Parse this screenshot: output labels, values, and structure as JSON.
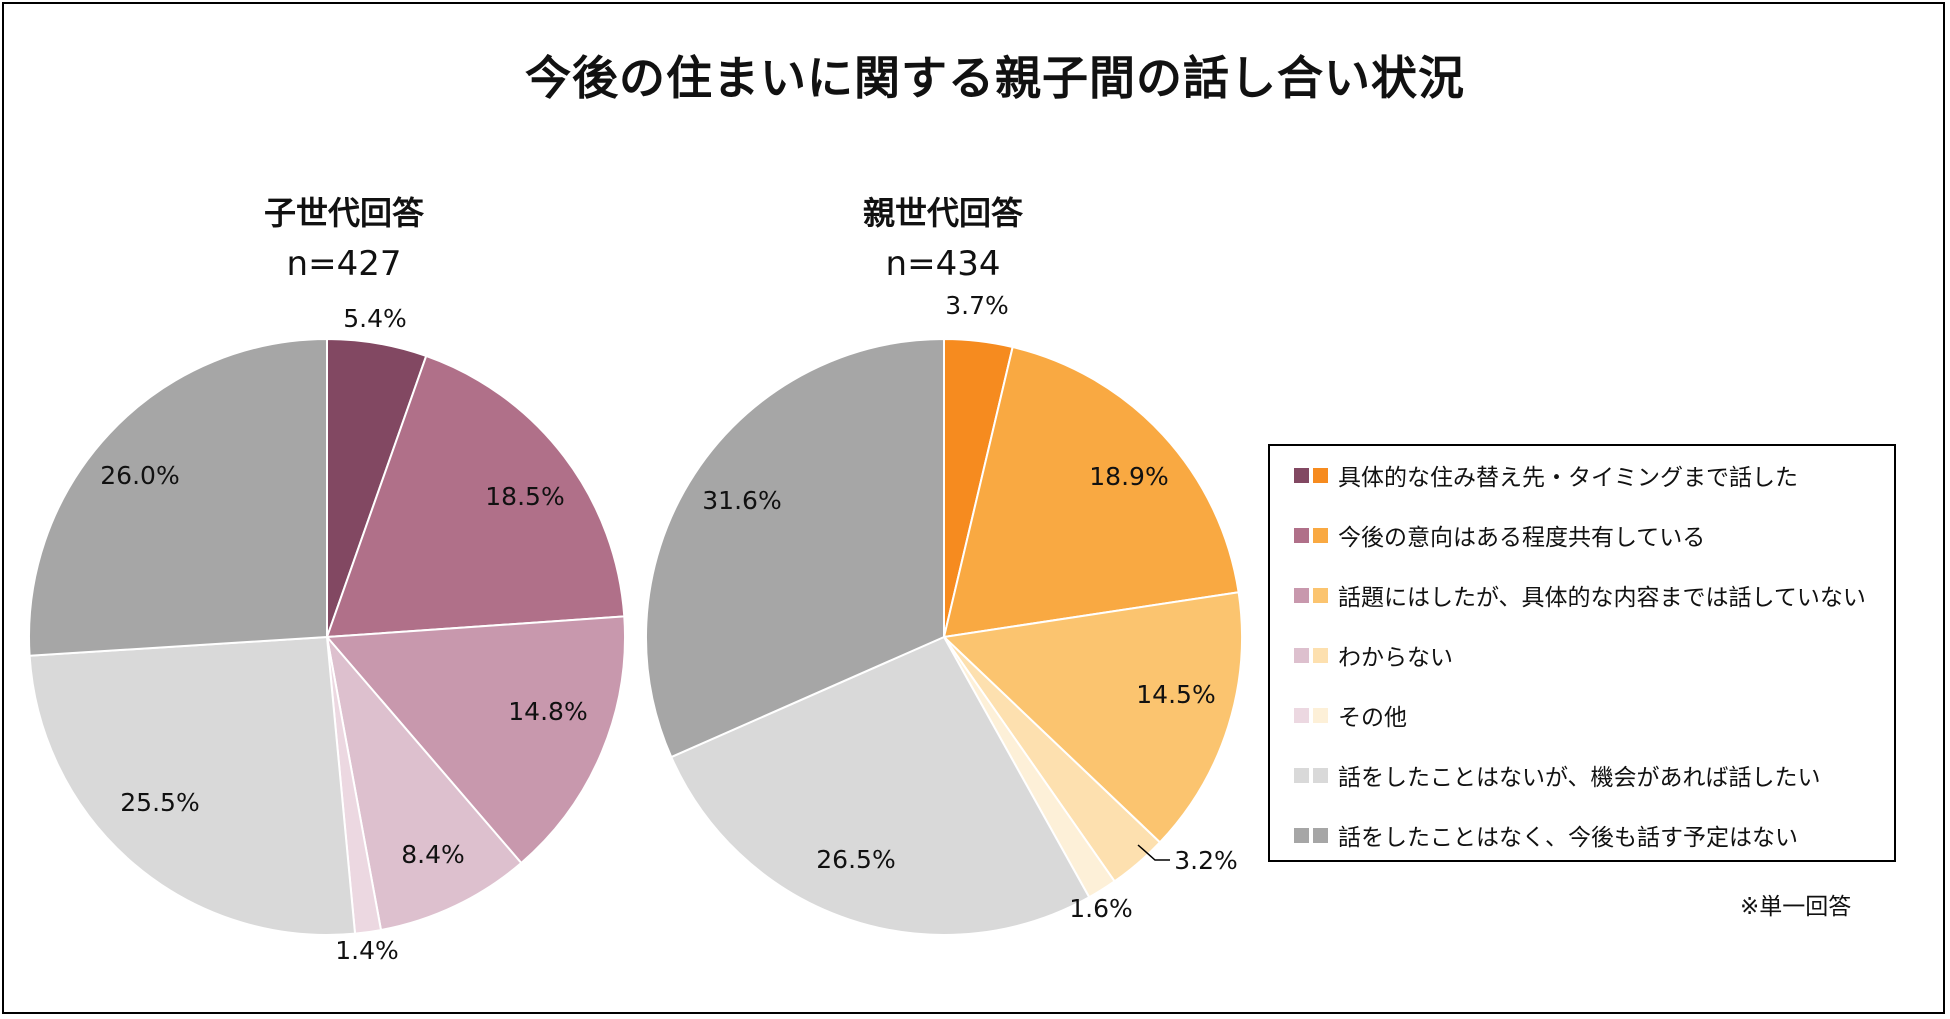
{
  "title": "今後の住まいに関する親子間の話し合い状況",
  "note": "※単一回答",
  "chart_data": [
    {
      "type": "pie",
      "title": "子世代回答",
      "n_label": "n=427",
      "labels": [
        "具体的な住み替え先・タイミングまで話した",
        "今後の意向はある程度共有している",
        "話題にはしたが、具体的な内容までは話していない",
        "わからない",
        "その他",
        "話をしたことはないが、機会があれば話したい",
        "話をしたことはなく、今後も話す予定はない"
      ],
      "values": [
        5.4,
        18.5,
        14.8,
        8.4,
        1.4,
        25.5,
        26.0
      ],
      "value_labels": [
        "5.4%",
        "18.5%",
        "14.8%",
        "8.4%",
        "1.4%",
        "25.5%",
        "26.0%"
      ],
      "colors": [
        "#824862",
        "#b07089",
        "#c898ad",
        "#ddc0ce",
        "#ecd8e1",
        "#d9d9d9",
        "#a6a6a6"
      ]
    },
    {
      "type": "pie",
      "title": "親世代回答",
      "n_label": "n=434",
      "labels": [
        "具体的な住み替え先・タイミングまで話した",
        "今後の意向はある程度共有している",
        "話題にはしたが、具体的な内容までは話していない",
        "わからない",
        "その他",
        "話をしたことはないが、機会があれば話したい",
        "話をしたことはなく、今後も話す予定はない"
      ],
      "values": [
        3.7,
        18.9,
        14.5,
        3.2,
        1.6,
        26.5,
        31.6
      ],
      "value_labels": [
        "3.7%",
        "18.9%",
        "14.5%",
        "3.2%",
        "1.6%",
        "26.5%",
        "31.6%"
      ],
      "colors": [
        "#f68b1f",
        "#f9a942",
        "#fbc46f",
        "#fde0af",
        "#fdf0d8",
        "#d9d9d9",
        "#a6a6a6"
      ]
    }
  ],
  "legend": {
    "items": [
      {
        "label": "具体的な住み替え先・タイミングまで話した",
        "color_a": "#824862",
        "color_b": "#f68b1f"
      },
      {
        "label": "今後の意向はある程度共有している",
        "color_a": "#b07089",
        "color_b": "#f9a942"
      },
      {
        "label": "話題にはしたが、具体的な内容までは話していない",
        "color_a": "#c898ad",
        "color_b": "#fbc46f"
      },
      {
        "label": "わからない",
        "color_a": "#ddc0ce",
        "color_b": "#fde0af"
      },
      {
        "label": "その他",
        "color_a": "#ecd8e1",
        "color_b": "#fdf0d8"
      },
      {
        "label": "話をしたことはないが、機会があれば話したい",
        "color_a": "#d9d9d9",
        "color_b": "#d9d9d9"
      },
      {
        "label": "話をしたことはなく、今後も話す予定はない",
        "color_a": "#a6a6a6",
        "color_b": "#a6a6a6"
      }
    ]
  }
}
